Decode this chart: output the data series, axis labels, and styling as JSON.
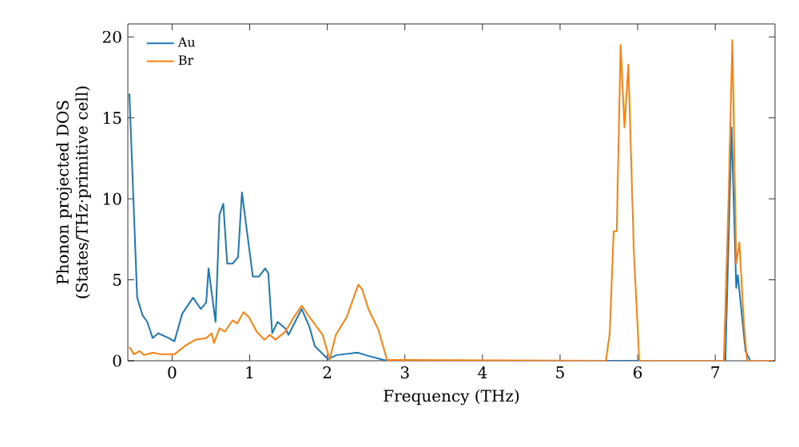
{
  "chart_data": {
    "type": "line",
    "xlabel": "Frequency (THz)",
    "ylabel": "Phonon projected DOS (States/THz·primitive cell)",
    "xlim": [
      -0.57,
      7.77
    ],
    "ylim": [
      0,
      20.8
    ],
    "xticks": [
      0,
      1,
      2,
      3,
      4,
      5,
      6,
      7
    ],
    "yticks": [
      0,
      5,
      10,
      15,
      20
    ],
    "grid": false,
    "legend": "top left",
    "marker": "none",
    "line_style": "solid",
    "series": [
      {
        "name": "Au",
        "color": "#1f77b4",
        "x": [
          -0.55,
          -0.45,
          -0.38,
          -0.32,
          -0.25,
          -0.18,
          -0.04,
          0.03,
          0.13,
          0.27,
          0.37,
          0.44,
          0.47,
          0.56,
          0.61,
          0.66,
          0.71,
          0.78,
          0.85,
          0.9,
          0.97,
          1.04,
          1.12,
          1.2,
          1.24,
          1.29,
          1.36,
          1.46,
          1.5,
          1.67,
          1.77,
          1.84,
          2.01,
          2.12,
          2.39,
          2.53,
          2.73,
          2.8,
          5.5,
          7.13,
          7.21,
          7.27,
          7.29,
          7.39,
          7.45,
          7.75
        ],
        "values": [
          16.5,
          3.9,
          2.8,
          2.4,
          1.4,
          1.7,
          1.4,
          1.2,
          2.9,
          3.9,
          3.2,
          3.6,
          5.7,
          2.4,
          9.0,
          9.7,
          6.0,
          6.0,
          6.4,
          10.4,
          7.8,
          5.2,
          5.2,
          5.7,
          5.4,
          1.7,
          2.4,
          2.0,
          1.6,
          3.2,
          2.1,
          0.9,
          0.1,
          0.35,
          0.5,
          0.3,
          0.05,
          0,
          0,
          0,
          14.4,
          4.5,
          5.3,
          0.6,
          0,
          0
        ]
      },
      {
        "name": "Br",
        "color": "#ff7f0e",
        "x": [
          -0.55,
          -0.49,
          -0.42,
          -0.36,
          -0.25,
          -0.15,
          0.03,
          0.16,
          0.3,
          0.44,
          0.51,
          0.54,
          0.61,
          0.68,
          0.78,
          0.84,
          0.92,
          0.99,
          1.09,
          1.19,
          1.26,
          1.33,
          1.46,
          1.57,
          1.67,
          1.77,
          1.94,
          2.03,
          2.11,
          2.25,
          2.4,
          2.45,
          2.53,
          2.66,
          2.77,
          5.59,
          5.64,
          5.69,
          5.73,
          5.78,
          5.83,
          5.88,
          5.95,
          6.02,
          7.11,
          7.17,
          7.22,
          7.27,
          7.31,
          7.37,
          7.41,
          7.75
        ],
        "values": [
          0.85,
          0.4,
          0.6,
          0.35,
          0.5,
          0.4,
          0.4,
          0.9,
          1.3,
          1.4,
          1.7,
          1.1,
          2.0,
          1.8,
          2.5,
          2.3,
          3.0,
          2.7,
          1.8,
          1.3,
          1.6,
          1.3,
          1.8,
          2.7,
          3.4,
          2.7,
          1.6,
          0.1,
          1.6,
          2.7,
          4.7,
          4.4,
          3.2,
          1.9,
          0.05,
          0,
          1.7,
          8.0,
          8.0,
          19.5,
          14.4,
          18.3,
          6.8,
          0,
          0,
          9.8,
          19.8,
          6.0,
          7.3,
          2.2,
          0,
          0
        ]
      }
    ]
  }
}
